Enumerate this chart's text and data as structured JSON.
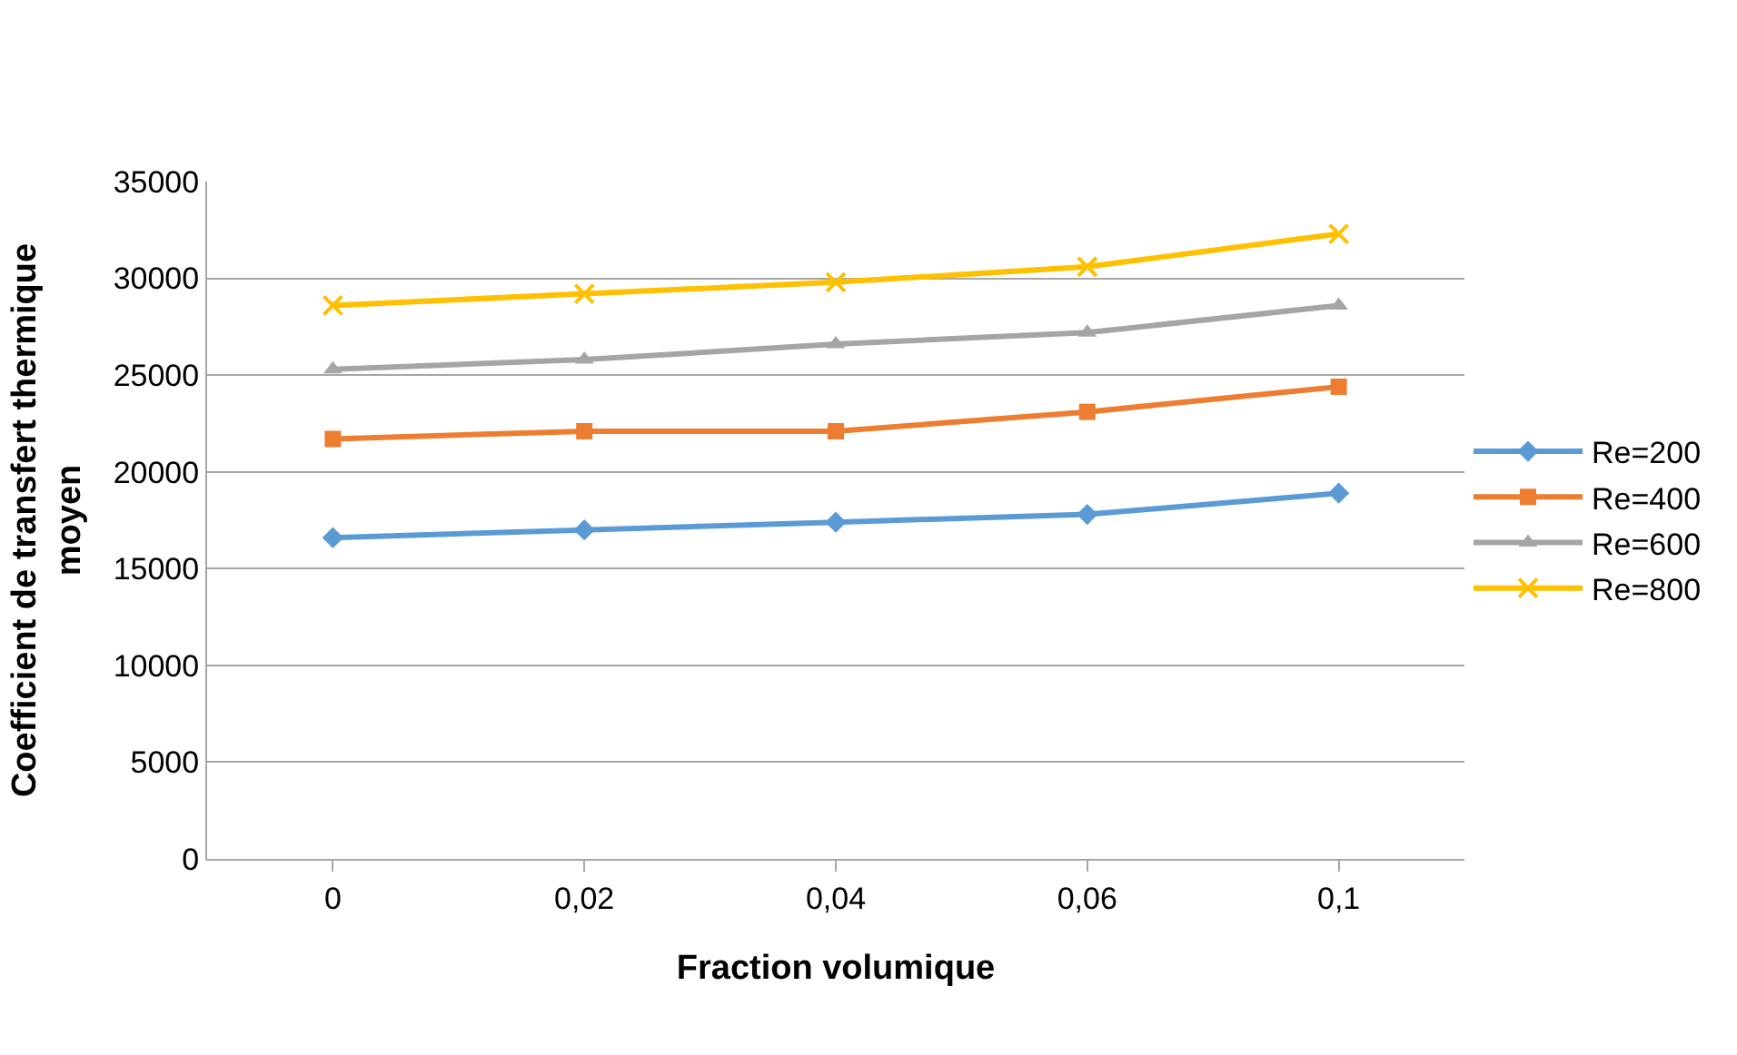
{
  "chart_data": {
    "type": "line",
    "xlabel": "Fraction volumique",
    "ylabel": "Coefficient de transfert thermique moyen",
    "categories": [
      "0",
      "0,02",
      "0,04",
      "0,06",
      "0,1"
    ],
    "series": [
      {
        "name": "Re=200",
        "color": "#5b9bd5",
        "marker": "diamond",
        "values": [
          16600,
          17000,
          17400,
          17800,
          18900
        ]
      },
      {
        "name": "Re=400",
        "color": "#ed7d31",
        "marker": "square",
        "values": [
          21700,
          22100,
          22100,
          23100,
          24400
        ]
      },
      {
        "name": "Re=600",
        "color": "#a5a5a5",
        "marker": "triangle",
        "values": [
          25300,
          25800,
          26600,
          27200,
          28600
        ]
      },
      {
        "name": "Re=800",
        "color": "#ffc000",
        "marker": "cross",
        "values": [
          28600,
          29200,
          29800,
          30600,
          32300
        ]
      }
    ],
    "ylim": [
      0,
      35000
    ],
    "yticks": [
      0,
      5000,
      10000,
      15000,
      20000,
      25000,
      30000,
      35000
    ],
    "grid": "y",
    "legend": "right"
  }
}
